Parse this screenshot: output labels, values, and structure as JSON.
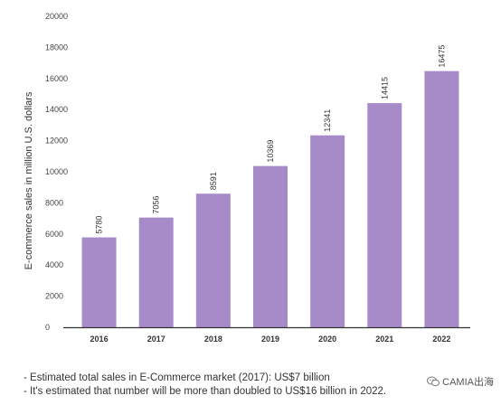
{
  "chart_data": {
    "type": "bar",
    "categories": [
      "2016",
      "2017",
      "2018",
      "2019",
      "2020",
      "2021",
      "2022"
    ],
    "values": [
      5780,
      7056,
      8591,
      10369,
      12341,
      14415,
      16475
    ],
    "data_labels": [
      "5780",
      "7056",
      "8591",
      "10369",
      "12341",
      "14415",
      "16475"
    ],
    "ylabel": "E-commerce sales in million U.S. dollars",
    "xlabel": "",
    "ylim": [
      0,
      20000
    ],
    "yticks": [
      0,
      2000,
      4000,
      6000,
      8000,
      10000,
      12000,
      14000,
      16000,
      18000,
      20000
    ],
    "bar_color": "#a78bc9",
    "grid": false
  },
  "notes": [
    "- Estimated total sales in E-Commerce market (2017): US$7 billion",
    "- It's estimated that number will be more than doubled to US$16 billion in 2022."
  ],
  "watermark": {
    "text": "CAMIA出海",
    "icon": "wechat-icon"
  }
}
